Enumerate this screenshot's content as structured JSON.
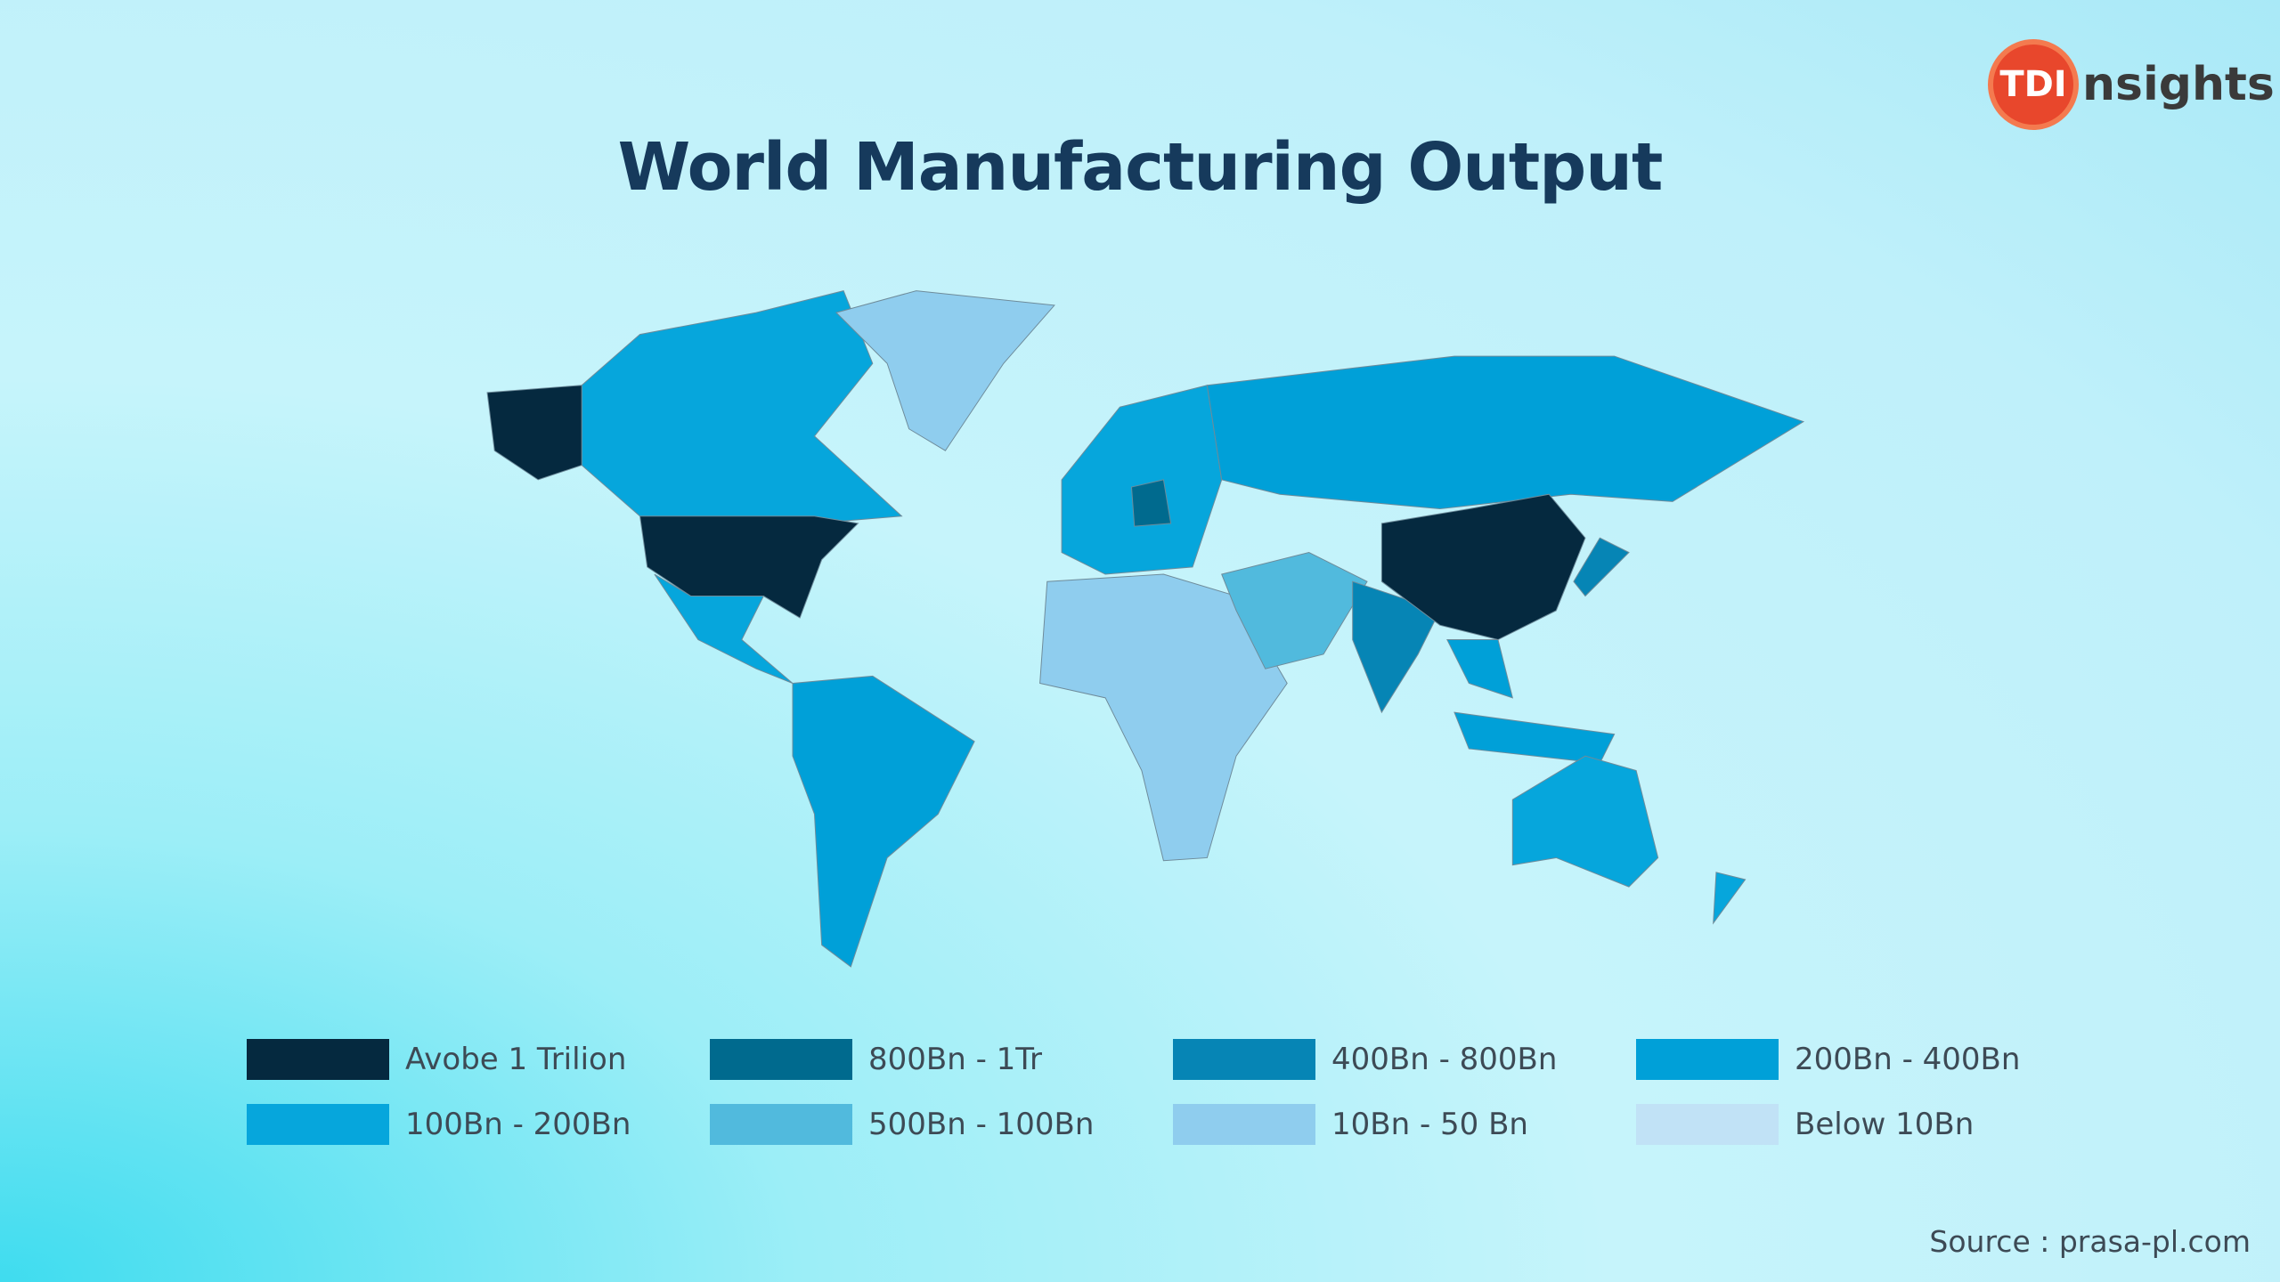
{
  "logo": {
    "mark": "TDI",
    "text": "nsights"
  },
  "title": "World Manufacturing Output",
  "legend": [
    {
      "label": "Avobe 1 Trilion",
      "color": "#05293f"
    },
    {
      "label": "800Bn - 1Tr",
      "color": "#006a8e"
    },
    {
      "label": "400Bn - 800Bn",
      "color": "#0685b5"
    },
    {
      "label": "200Bn - 400Bn",
      "color": "#00a0d8"
    },
    {
      "label": "100Bn - 200Bn",
      "color": "#06a6dc"
    },
    {
      "label": "500Bn - 100Bn",
      "color": "#51badd"
    },
    {
      "label": "10Bn - 50 Bn",
      "color": "#8fcdee"
    },
    {
      "label": "Below 10Bn",
      "color": "#c1e2f6"
    }
  ],
  "source": "Source : prasa-pl.com"
}
